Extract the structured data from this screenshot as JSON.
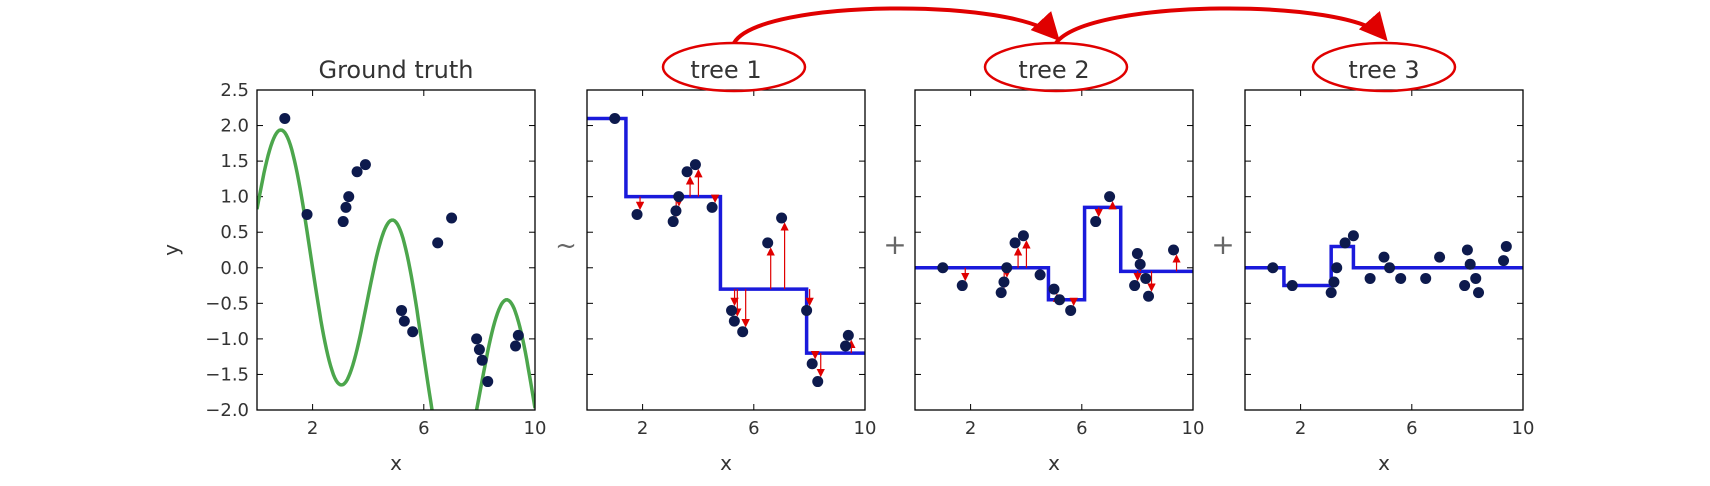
{
  "colors": {
    "truth_line": "#4ca64c",
    "tree_line": "#1a1adb",
    "points": "#0d1a4d",
    "arrows": "#e00000",
    "annotation": "#e00000",
    "frame": "#000000"
  },
  "operators": [
    "~",
    "+",
    "+"
  ],
  "chart_data": [
    {
      "type": "scatter+line",
      "title": "Ground truth",
      "xlabel": "x",
      "ylabel": "y",
      "xlim": [
        0,
        10
      ],
      "ylim": [
        -2.0,
        2.5
      ],
      "xticks": [
        2,
        6,
        10
      ],
      "yticks": [
        -2.0,
        -1.5,
        -1.0,
        -0.5,
        0.0,
        0.5,
        1.0,
        1.5,
        2.0,
        2.5
      ],
      "x": [
        1.0,
        1.8,
        3.1,
        3.2,
        3.3,
        3.6,
        3.9,
        5.2,
        5.3,
        5.6,
        6.5,
        7.0,
        7.9,
        8.0,
        8.1,
        8.3,
        9.3,
        9.4
      ],
      "y": [
        2.1,
        0.75,
        0.65,
        0.85,
        1.0,
        1.35,
        1.45,
        -0.6,
        -0.75,
        -0.9,
        0.35,
        0.7,
        -1.0,
        -1.15,
        -1.3,
        -1.6,
        -1.1,
        -0.95
      ],
      "curve": "sin"
    },
    {
      "type": "scatter+step",
      "title": "tree 1",
      "xlabel": "x",
      "xlim": [
        0,
        10
      ],
      "ylim": [
        -2.0,
        2.5
      ],
      "xticks": [
        2,
        6,
        10
      ],
      "x": [
        1.0,
        1.8,
        3.1,
        3.2,
        3.3,
        3.6,
        3.9,
        4.5,
        5.2,
        5.3,
        5.6,
        6.5,
        7.0,
        7.9,
        8.1,
        8.3,
        9.3,
        9.4
      ],
      "y": [
        2.1,
        0.75,
        0.65,
        0.8,
        1.0,
        1.35,
        1.45,
        0.85,
        -0.6,
        -0.75,
        -0.9,
        0.35,
        0.7,
        -0.6,
        -1.35,
        -1.6,
        -1.1,
        -0.95
      ],
      "step": {
        "edges": [
          0,
          1.4,
          4.8,
          7.9,
          10
        ],
        "levels": [
          2.1,
          1.0,
          -0.3,
          -1.2
        ]
      },
      "residual_arrows": true
    },
    {
      "type": "scatter+step",
      "title": "tree 2",
      "xlabel": "x",
      "xlim": [
        0,
        10
      ],
      "ylim": [
        -2.0,
        2.5
      ],
      "xticks": [
        2,
        6,
        10
      ],
      "x": [
        1.0,
        1.7,
        3.1,
        3.2,
        3.3,
        3.6,
        3.9,
        4.5,
        5.0,
        5.2,
        5.6,
        6.5,
        7.0,
        7.9,
        8.0,
        8.1,
        8.3,
        8.4,
        9.3
      ],
      "y": [
        0.0,
        -0.25,
        -0.35,
        -0.2,
        0.0,
        0.35,
        0.45,
        -0.1,
        -0.3,
        -0.45,
        -0.6,
        0.65,
        1.0,
        -0.25,
        0.2,
        0.05,
        -0.15,
        -0.4,
        0.25
      ],
      "step": {
        "edges": [
          0,
          4.8,
          6.1,
          7.4,
          10
        ],
        "levels": [
          0.0,
          -0.45,
          0.85,
          -0.05
        ]
      },
      "residual_arrows": true
    },
    {
      "type": "scatter+step",
      "title": "tree 3",
      "xlabel": "x",
      "xlim": [
        0,
        10
      ],
      "ylim": [
        -2.0,
        2.5
      ],
      "xticks": [
        2,
        6,
        10
      ],
      "x": [
        1.0,
        1.7,
        3.1,
        3.2,
        3.3,
        3.6,
        3.9,
        4.5,
        5.0,
        5.2,
        5.6,
        6.5,
        7.0,
        7.9,
        8.0,
        8.1,
        8.3,
        8.4,
        9.3,
        9.4
      ],
      "y": [
        0.0,
        -0.25,
        -0.35,
        -0.2,
        0.0,
        0.35,
        0.45,
        -0.15,
        0.15,
        0.0,
        -0.15,
        -0.15,
        0.15,
        -0.25,
        0.25,
        0.05,
        -0.15,
        -0.35,
        0.1,
        0.3
      ],
      "step": {
        "edges": [
          0,
          1.4,
          3.1,
          3.9,
          10
        ],
        "levels": [
          0.0,
          -0.25,
          0.3,
          0.0
        ]
      },
      "residual_arrows": false
    }
  ]
}
